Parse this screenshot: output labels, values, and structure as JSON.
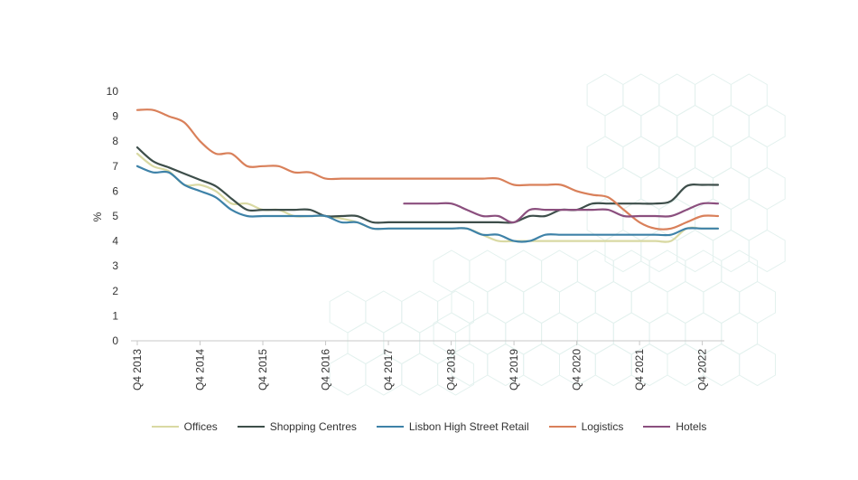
{
  "chart_data": {
    "type": "line",
    "ylabel": "%",
    "xlabel": "",
    "ylim": [
      0,
      10
    ],
    "yticks": [
      0,
      1,
      2,
      3,
      4,
      5,
      6,
      7,
      8,
      9,
      10
    ],
    "xtick_labels": [
      "Q4 2013",
      "Q4 2014",
      "Q4 2015",
      "Q4 2016",
      "Q4 2017",
      "Q4 2018",
      "Q4 2019",
      "Q4 2020",
      "Q4 2021",
      "Q4 2022"
    ],
    "x": [
      "Q4 2013",
      "Q1 2014",
      "Q2 2014",
      "Q3 2014",
      "Q4 2014",
      "Q1 2015",
      "Q2 2015",
      "Q3 2015",
      "Q4 2015",
      "Q1 2016",
      "Q2 2016",
      "Q3 2016",
      "Q4 2016",
      "Q1 2017",
      "Q2 2017",
      "Q3 2017",
      "Q4 2017",
      "Q1 2018",
      "Q2 2018",
      "Q3 2018",
      "Q4 2018",
      "Q1 2019",
      "Q2 2019",
      "Q3 2019",
      "Q4 2019",
      "Q1 2020",
      "Q2 2020",
      "Q3 2020",
      "Q4 2020",
      "Q1 2021",
      "Q2 2021",
      "Q3 2021",
      "Q4 2021",
      "Q1 2022",
      "Q2 2022",
      "Q3 2022",
      "Q4 2022",
      "Q1 2023"
    ],
    "series": [
      {
        "name": "Offices",
        "color": "#d9d9a3",
        "values": [
          7.5,
          7.0,
          6.8,
          6.25,
          6.25,
          6.0,
          5.5,
          5.5,
          5.25,
          5.25,
          5.0,
          5.0,
          5.0,
          4.9,
          4.75,
          4.5,
          4.5,
          4.5,
          4.5,
          4.5,
          4.5,
          4.5,
          4.25,
          4.0,
          4.0,
          4.0,
          4.0,
          4.0,
          4.0,
          4.0,
          4.0,
          4.0,
          4.0,
          4.0,
          4.0,
          4.5,
          4.5,
          4.5
        ]
      },
      {
        "name": "Shopping Centres",
        "color": "#3d4e4a",
        "values": [
          7.75,
          7.2,
          6.95,
          6.7,
          6.45,
          6.2,
          5.7,
          5.25,
          5.25,
          5.25,
          5.25,
          5.25,
          5.0,
          5.0,
          5.0,
          4.75,
          4.75,
          4.75,
          4.75,
          4.75,
          4.75,
          4.75,
          4.75,
          4.75,
          4.75,
          5.0,
          5.0,
          5.25,
          5.25,
          5.5,
          5.5,
          5.5,
          5.5,
          5.5,
          5.6,
          6.2,
          6.25,
          6.25
        ]
      },
      {
        "name": "Lisbon High Street Retail",
        "color": "#3e82a8",
        "values": [
          7.0,
          6.75,
          6.75,
          6.25,
          6.0,
          5.75,
          5.25,
          5.0,
          5.0,
          5.0,
          5.0,
          5.0,
          5.0,
          4.75,
          4.75,
          4.5,
          4.5,
          4.5,
          4.5,
          4.5,
          4.5,
          4.5,
          4.25,
          4.25,
          4.0,
          4.0,
          4.25,
          4.25,
          4.25,
          4.25,
          4.25,
          4.25,
          4.25,
          4.25,
          4.25,
          4.5,
          4.5,
          4.5
        ]
      },
      {
        "name": "Logistics",
        "color": "#d9805a",
        "values": [
          9.25,
          9.25,
          9.0,
          8.75,
          8.0,
          7.5,
          7.5,
          7.0,
          7.0,
          7.0,
          6.75,
          6.75,
          6.5,
          6.5,
          6.5,
          6.5,
          6.5,
          6.5,
          6.5,
          6.5,
          6.5,
          6.5,
          6.5,
          6.5,
          6.25,
          6.25,
          6.25,
          6.25,
          6.0,
          5.85,
          5.75,
          5.25,
          4.75,
          4.5,
          4.5,
          4.75,
          5.0,
          5.0
        ]
      },
      {
        "name": "Hotels",
        "color": "#8b4f7e",
        "values": [
          null,
          null,
          null,
          null,
          null,
          null,
          null,
          null,
          null,
          null,
          null,
          null,
          null,
          null,
          null,
          null,
          null,
          5.5,
          5.5,
          5.5,
          5.5,
          5.25,
          5.0,
          5.0,
          4.75,
          5.25,
          5.25,
          5.25,
          5.25,
          5.25,
          5.25,
          5.0,
          5.0,
          5.0,
          5.0,
          5.25,
          5.5,
          5.5
        ]
      }
    ],
    "grid": false,
    "legend_position": "bottom"
  }
}
